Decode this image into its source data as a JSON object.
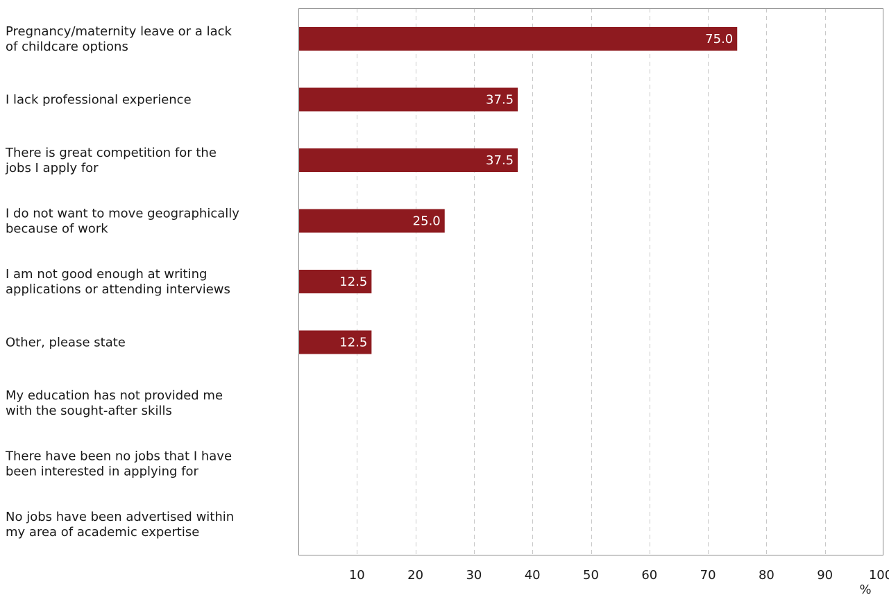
{
  "chart_data": {
    "type": "bar",
    "orientation": "horizontal",
    "title": "",
    "xlabel": "%",
    "ylabel": "",
    "xlim": [
      0,
      100
    ],
    "grid": true,
    "legend": "none",
    "bar_color": "#8e1a1f",
    "grid_color": "#c8c8c8",
    "axis_color": "#8a8a8a",
    "x_ticks": [
      10,
      20,
      30,
      40,
      50,
      60,
      70,
      80,
      90,
      100
    ],
    "categories": [
      [
        "Pregnancy/maternity leave or a lack",
        "of childcare options"
      ],
      [
        "I lack professional experience"
      ],
      [
        "There is great competition for the",
        "jobs I apply for"
      ],
      [
        "I do not want to move geographically",
        "because of work"
      ],
      [
        "I am not good enough at writing",
        "applications or attending interviews"
      ],
      [
        "Other, please state"
      ],
      [
        "My education has not provided me",
        "with the sought-after skills"
      ],
      [
        "There have been no jobs that I have",
        "been interested in applying for"
      ],
      [
        "No jobs have been advertised within",
        "my area of academic expertise"
      ]
    ],
    "values": [
      75.0,
      37.5,
      37.5,
      25.0,
      12.5,
      12.5,
      null,
      null,
      null
    ],
    "value_labels": [
      "75.0",
      "37.5",
      "37.5",
      "25.0",
      "12.5",
      "12.5",
      "",
      "",
      ""
    ]
  }
}
